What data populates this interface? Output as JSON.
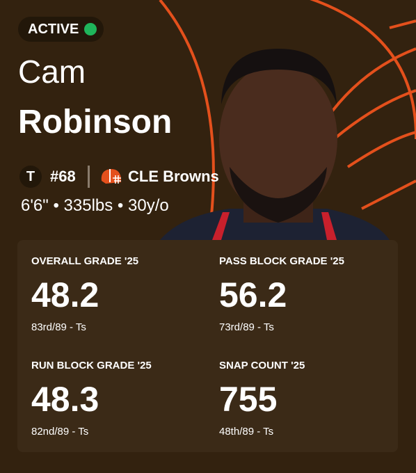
{
  "status": "ACTIVE",
  "player": {
    "first_name": "Cam",
    "last_name": "Robinson",
    "position": "T",
    "number": "#68",
    "team": "CLE Browns",
    "bio": "6'6\" • 335lbs • 30y/o"
  },
  "stats": [
    {
      "label": "OVERALL GRADE '25",
      "value": "48.2",
      "rank": "83rd/89 - Ts"
    },
    {
      "label": "PASS BLOCK GRADE '25",
      "value": "56.2",
      "rank": "73rd/89 - Ts"
    },
    {
      "label": "RUN BLOCK GRADE '25",
      "value": "48.3",
      "rank": "82nd/89 - Ts"
    },
    {
      "label": "SNAP COUNT '25",
      "value": "755",
      "rank": "48th/89 - Ts"
    }
  ]
}
